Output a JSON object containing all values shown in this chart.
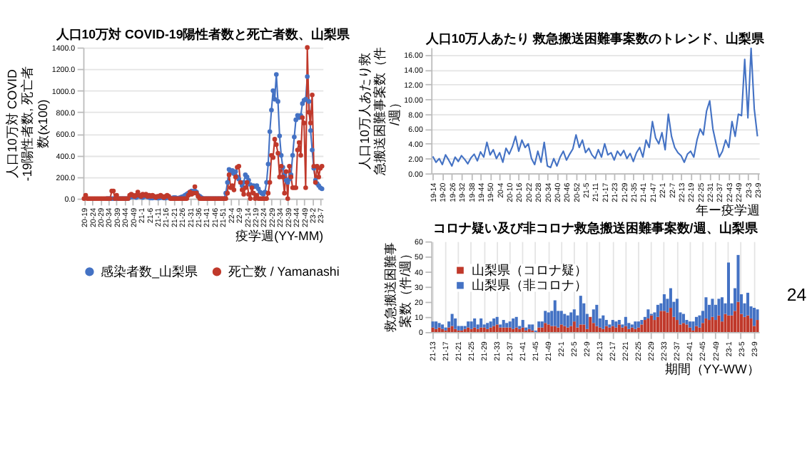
{
  "chart_data": [
    {
      "type": "line",
      "title": "人口10万対 COVID-19陽性者数と死亡者数、山梨県",
      "ylabel": "人口10万対 COVID-19陽性者数, 死亡者数(x100)",
      "xlabel": "疫学週(YY-MM)",
      "categories": [
        "20-19",
        null,
        null,
        null,
        null,
        "20-24",
        null,
        null,
        null,
        null,
        "20-29",
        null,
        null,
        null,
        null,
        "20-34",
        null,
        null,
        null,
        null,
        "20-39",
        null,
        null,
        null,
        null,
        "20-44",
        null,
        null,
        null,
        null,
        "20-49",
        null,
        null,
        null,
        null,
        "21-1",
        null,
        null,
        null,
        null,
        "21-6",
        null,
        null,
        null,
        null,
        "21-11",
        null,
        null,
        null,
        null,
        "21-16",
        null,
        null,
        null,
        null,
        "21-21",
        null,
        null,
        null,
        null,
        "21-26",
        null,
        null,
        null,
        null,
        "21-31",
        null,
        null,
        null,
        null,
        "21-36",
        null,
        null,
        null,
        null,
        "21-41",
        null,
        null,
        null,
        null,
        "21-46",
        null,
        null,
        null,
        null,
        "21-51",
        null,
        null,
        null,
        null,
        "22-4",
        null,
        null,
        null,
        null,
        "22-9",
        null,
        null,
        null,
        null,
        "22-14",
        null,
        null,
        null,
        null,
        "22-19",
        null,
        null,
        null,
        null,
        "22-24",
        null,
        null,
        null,
        null,
        "22-29",
        null,
        null,
        null,
        null,
        "22-34",
        null,
        null,
        null,
        null,
        "22-39",
        null,
        null,
        null,
        null,
        "22-44",
        null,
        null,
        null,
        null,
        "22-49",
        null,
        null,
        null,
        null,
        "23-2",
        null,
        null,
        null,
        null,
        "23-7",
        null
      ],
      "series": [
        {
          "name": "感染者数_山梨県",
          "color": "#4472c4",
          "values": [
            null,
            null,
            null,
            null,
            null,
            null,
            null,
            null,
            null,
            null,
            null,
            null,
            null,
            null,
            0,
            0,
            0,
            0,
            0,
            0,
            0,
            0,
            0,
            0,
            0,
            0,
            0,
            0,
            10,
            20,
            15,
            25,
            10,
            20,
            30,
            15,
            10,
            20,
            25,
            15,
            10,
            5,
            5,
            10,
            10,
            5,
            5,
            10,
            10,
            5,
            5,
            10,
            10,
            5,
            5,
            10,
            10,
            5,
            5,
            10,
            15,
            20,
            30,
            40,
            50,
            60,
            70,
            60,
            70,
            60,
            30,
            20,
            10,
            0,
            0,
            0,
            0,
            0,
            0,
            0,
            0,
            0,
            0,
            0,
            0,
            0,
            0,
            50,
            150,
            270,
            240,
            260,
            230,
            250,
            200,
            180,
            150,
            120,
            150,
            220,
            200,
            170,
            130,
            110,
            120,
            110,
            120,
            90,
            60,
            50,
            40,
            60,
            150,
            320,
            620,
            820,
            1000,
            920,
            1150,
            900,
            580,
            400,
            290,
            220,
            170,
            150,
            180,
            220,
            400,
            570,
            730,
            770,
            750,
            770,
            880,
            910,
            920,
            1130,
            900,
            630,
            450,
            280,
            170,
            140,
            120,
            100,
            90
          ]
        },
        {
          "name": "死亡数 / Yamanashi",
          "color": "#c0392b",
          "values": [
            0,
            30,
            0,
            0,
            0,
            0,
            0,
            0,
            0,
            0,
            0,
            0,
            0,
            0,
            0,
            0,
            0,
            70,
            70,
            0,
            30,
            0,
            0,
            0,
            0,
            0,
            0,
            0,
            30,
            40,
            30,
            20,
            30,
            60,
            30,
            20,
            40,
            30,
            40,
            20,
            30,
            20,
            30,
            20,
            10,
            20,
            20,
            30,
            20,
            10,
            20,
            30,
            20,
            0,
            0,
            0,
            0,
            0,
            0,
            0,
            0,
            0,
            0,
            0,
            30,
            60,
            40,
            50,
            110,
            50,
            20,
            0,
            0,
            0,
            0,
            0,
            0,
            0,
            0,
            0,
            0,
            0,
            0,
            0,
            0,
            0,
            0,
            0,
            50,
            220,
            100,
            120,
            80,
            200,
            290,
            300,
            150,
            80,
            40,
            100,
            150,
            40,
            0,
            100,
            50,
            0,
            30,
            0,
            0,
            0,
            0,
            0,
            0,
            50,
            150,
            400,
            380,
            550,
            500,
            420,
            200,
            300,
            200,
            50,
            250,
            0,
            300,
            200,
            100,
            100,
            100,
            450,
            520,
            400,
            750,
            700,
            100,
            1400,
            800,
            700,
            960,
            300,
            150,
            300,
            200,
            280,
            300
          ]
        }
      ],
      "ylim": [
        0,
        1400
      ],
      "yticks": [
        {
          "value": 0,
          "label": "0.0"
        },
        {
          "value": 200,
          "label": "200.0"
        },
        {
          "value": 400,
          "label": "400.0"
        },
        {
          "value": 600,
          "label": "600.0"
        },
        {
          "value": 800,
          "label": "800.0"
        },
        {
          "value": 1000,
          "label": "1000.0"
        },
        {
          "value": 1200,
          "label": "1200.0"
        },
        {
          "value": 1400,
          "label": "1400.0"
        }
      ],
      "grid": "y",
      "legend": "bottom",
      "marker": "circle",
      "line_style": "solid"
    },
    {
      "type": "line",
      "title": "人口10万人あたり 救急搬送困難事案数のトレンド、山梨県",
      "ylabel": "人口10万人あたり救急搬送困難事案数（件/週）",
      "xlabel": "年ー疫学週",
      "categories": [
        "19-14",
        null,
        null,
        "19-20",
        null,
        null,
        "19-26",
        null,
        null,
        "19-32",
        null,
        null,
        "19-38",
        null,
        null,
        "19-44",
        null,
        null,
        "19-50",
        null,
        null,
        "20-4",
        null,
        null,
        "20-10",
        null,
        null,
        "20-16",
        null,
        null,
        "20-22",
        null,
        null,
        "20-28",
        null,
        null,
        "20-34",
        null,
        null,
        "20-40",
        null,
        null,
        "20-46",
        null,
        null,
        "20-52",
        null,
        null,
        "21-5",
        null,
        null,
        "21-11",
        null,
        null,
        "21-17",
        null,
        null,
        "21-23",
        null,
        null,
        "21-29",
        null,
        null,
        "21-35",
        null,
        null,
        "21-41",
        null,
        null,
        "21-47",
        null,
        null,
        "22-1",
        null,
        null,
        "22-7",
        null,
        null,
        "22-13",
        null,
        null,
        "22-19",
        null,
        null,
        "22-25",
        null,
        null,
        "22-31",
        null,
        null,
        "22-37",
        null,
        null,
        "22-43",
        null,
        null,
        "22-49",
        null,
        null,
        "23-3",
        null,
        null,
        "23-9"
      ],
      "series": [
        {
          "color": "#4472c4",
          "values": [
            2.3,
            1.5,
            2.0,
            1.2,
            2.5,
            1.8,
            1.0,
            2.2,
            1.6,
            2.4,
            1.9,
            1.3,
            2.1,
            2.6,
            1.7,
            2.9,
            2.2,
            4.2,
            2.5,
            3.2,
            2.0,
            2.8,
            1.5,
            3.4,
            2.6,
            3.6,
            5.0,
            3.0,
            4.5,
            3.5,
            4.0,
            2.0,
            1.2,
            3.0,
            1.5,
            4.2,
            1.0,
            0.8,
            2.0,
            1.0,
            2.2,
            3.0,
            1.8,
            2.6,
            3.3,
            5.2,
            3.5,
            4.5,
            2.8,
            3.4,
            2.5,
            2.0,
            3.2,
            2.2,
            4.0,
            2.5,
            2.8,
            1.8,
            3.0,
            2.4,
            3.1,
            2.0,
            2.7,
            1.6,
            2.8,
            3.5,
            2.2,
            4.5,
            3.5,
            7.0,
            4.8,
            4.0,
            5.5,
            3.2,
            8.0,
            5.0,
            3.5,
            2.8,
            2.4,
            1.5,
            2.6,
            3.0,
            2.2,
            4.5,
            6.0,
            5.2,
            8.4,
            9.8,
            6.0,
            4.0,
            2.2,
            3.0,
            4.5,
            3.5,
            7.0,
            5.0,
            8.0,
            7.8,
            15.4,
            7.5,
            16.9,
            8.7,
            5.0
          ]
        }
      ],
      "ylim": [
        0,
        17
      ],
      "yticks": [
        {
          "value": 0,
          "label": "0.00"
        },
        {
          "value": 2,
          "label": "2.00"
        },
        {
          "value": 4,
          "label": "4.00"
        },
        {
          "value": 6,
          "label": "6.00"
        },
        {
          "value": 8,
          "label": "8.00"
        },
        {
          "value": 10,
          "label": "10.00"
        },
        {
          "value": 12,
          "label": "12.00"
        },
        {
          "value": 14,
          "label": "14.00"
        },
        {
          "value": 16,
          "label": "16.00"
        }
      ],
      "grid": "y",
      "line_style": "solid"
    },
    {
      "type": "bar",
      "stacked": true,
      "title": "コロナ疑い及び非コロナ救急搬送困難事案数/週、山梨県",
      "ylabel": "救急搬送困難事案数（件/週）",
      "xlabel": "期間（YY-WW）",
      "categories": [
        "21-13",
        null,
        null,
        null,
        "21-17",
        null,
        null,
        null,
        "21-21",
        null,
        null,
        null,
        "21-25",
        null,
        null,
        null,
        "21-29",
        null,
        null,
        null,
        "21-33",
        null,
        null,
        null,
        "21-37",
        null,
        null,
        null,
        "21-41",
        null,
        null,
        null,
        "21-45",
        null,
        null,
        null,
        "21-49",
        null,
        null,
        null,
        "22-1",
        null,
        null,
        null,
        "22-5",
        null,
        null,
        null,
        "22-9",
        null,
        null,
        null,
        "22-13",
        null,
        null,
        null,
        "22-17",
        null,
        null,
        null,
        "22-21",
        null,
        null,
        null,
        "22-25",
        null,
        null,
        null,
        "22-29",
        null,
        null,
        null,
        "22-33",
        null,
        null,
        null,
        "22-37",
        null,
        null,
        null,
        "22-41",
        null,
        null,
        null,
        "22-45",
        null,
        null,
        null,
        "22-49",
        null,
        null,
        null,
        "23-1",
        null,
        null,
        null,
        "23-5",
        null,
        null,
        null,
        "23-9",
        null
      ],
      "series": [
        {
          "name": "山梨県（コロナ疑）",
          "color": "#c0392b",
          "values": [
            3,
            2,
            3,
            2,
            1,
            3,
            4,
            2,
            1,
            1,
            2,
            3,
            2,
            3,
            2,
            3,
            3,
            2,
            3,
            4,
            5,
            3,
            3,
            3,
            3,
            2,
            3,
            2,
            3,
            1,
            2,
            1,
            0,
            3,
            3,
            6,
            5,
            4,
            4,
            3,
            5,
            4,
            3,
            4,
            7,
            3,
            5,
            5,
            2,
            10,
            6,
            4,
            3,
            2,
            4,
            3,
            4,
            3,
            5,
            3,
            4,
            2,
            3,
            2,
            3,
            5,
            8,
            9,
            11,
            8,
            10,
            14,
            14,
            13,
            16,
            10,
            8,
            5,
            6,
            5,
            3,
            1,
            4,
            3,
            6,
            9,
            8,
            10,
            8,
            11,
            7,
            12,
            11,
            11,
            14,
            20,
            12,
            10,
            11,
            9,
            4,
            8
          ]
        },
        {
          "name": "山梨県（非コロナ）",
          "color": "#4472c4",
          "values": [
            4,
            5,
            3,
            3,
            2,
            4,
            8,
            7,
            3,
            3,
            2,
            4,
            5,
            6,
            3,
            6,
            2,
            4,
            4,
            5,
            5,
            2,
            5,
            3,
            4,
            7,
            7,
            2,
            5,
            2,
            3,
            4,
            1,
            4,
            4,
            8,
            8,
            10,
            17,
            11,
            9,
            8,
            8,
            9,
            8,
            8,
            19,
            14,
            10,
            0,
            9,
            14,
            6,
            9,
            4,
            2,
            4,
            4,
            3,
            2,
            6,
            4,
            2,
            5,
            4,
            3,
            2,
            6,
            1,
            5,
            8,
            5,
            11,
            9,
            13,
            10,
            14,
            8,
            6,
            3,
            4,
            6,
            6,
            8,
            8,
            14,
            10,
            12,
            10,
            11,
            16,
            7,
            35,
            8,
            15,
            31,
            13,
            9,
            15,
            8,
            12,
            7
          ]
        }
      ],
      "ylim": [
        0,
        60
      ],
      "yticks": [
        0,
        10,
        20,
        30,
        40,
        50,
        60
      ],
      "grid": "x",
      "legend": "top left",
      "annotations": [
        "24"
      ]
    }
  ]
}
